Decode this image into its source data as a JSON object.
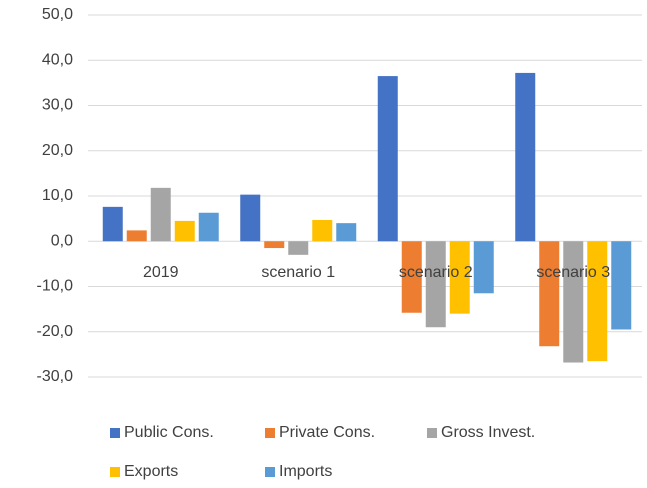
{
  "chart_data": {
    "type": "bar",
    "categories": [
      "2019",
      "scenario 1",
      "scenario 2",
      "scenario 3"
    ],
    "series": [
      {
        "name": "Public Cons.",
        "color": "#4472c4",
        "values": [
          7.6,
          10.3,
          36.5,
          37.2
        ]
      },
      {
        "name": "Private Cons.",
        "color": "#ed7d31",
        "values": [
          2.4,
          -1.5,
          -15.8,
          -23.2
        ]
      },
      {
        "name": "Gross Invest.",
        "color": "#a5a5a5",
        "values": [
          11.8,
          -3.0,
          -19.0,
          -26.8
        ]
      },
      {
        "name": "Exports",
        "color": "#ffc000",
        "values": [
          4.5,
          4.7,
          -16.0,
          -26.5
        ]
      },
      {
        "name": "Imports",
        "color": "#5b9bd5",
        "values": [
          6.3,
          4.0,
          -11.5,
          -19.5
        ]
      }
    ],
    "ylim": [
      -30,
      50
    ],
    "yticks": [
      {
        "value": -30,
        "label": "-30,0"
      },
      {
        "value": -20,
        "label": "-20,0"
      },
      {
        "value": -10,
        "label": "-10,0"
      },
      {
        "value": 0,
        "label": "0,0"
      },
      {
        "value": 10,
        "label": "10,0"
      },
      {
        "value": 20,
        "label": "20,0"
      },
      {
        "value": 30,
        "label": "30,0"
      },
      {
        "value": 40,
        "label": "40,0"
      },
      {
        "value": 50,
        "label": "50,0"
      }
    ],
    "grid": true,
    "legend": "bottom"
  }
}
